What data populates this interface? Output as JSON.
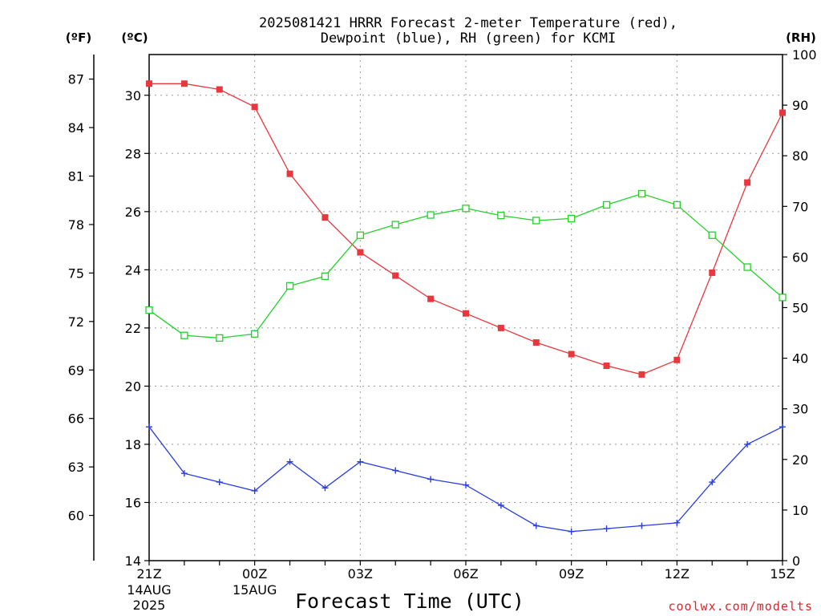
{
  "title": {
    "line1": "2025081421 HRRR Forecast 2-meter Temperature (red),",
    "line2": "Dewpoint (blue), RH (green) for KCMI"
  },
  "units": {
    "fahrenheit": "(ºF)",
    "celsius": "(ºC)",
    "rh": "(RH)"
  },
  "xlabel": "Forecast Time (UTC)",
  "credit": "coolwx.com/modelts",
  "colors": {
    "temperature": "#e8373d",
    "dewpoint": "#2a3ee0",
    "rh": "#22d22a",
    "grid": "#9a9a9a",
    "axes": "#000000"
  },
  "chart_data": {
    "type": "line",
    "x": [
      "21Z",
      "22Z",
      "23Z",
      "00Z",
      "01Z",
      "02Z",
      "03Z",
      "04Z",
      "05Z",
      "06Z",
      "07Z",
      "08Z",
      "09Z",
      "10Z",
      "11Z",
      "12Z",
      "13Z",
      "14Z",
      "15Z"
    ],
    "x_ticks": [
      {
        "label": "21Z",
        "sub": [
          "14AUG",
          "2025"
        ]
      },
      {
        "label": "00Z",
        "sub": [
          "15AUG"
        ]
      },
      {
        "label": "03Z",
        "sub": []
      },
      {
        "label": "06Z",
        "sub": []
      },
      {
        "label": "09Z",
        "sub": []
      },
      {
        "label": "12Z",
        "sub": []
      },
      {
        "label": "15Z",
        "sub": []
      }
    ],
    "y_celsius": {
      "range": [
        14,
        31.4
      ],
      "ticks": [
        14,
        16,
        18,
        20,
        22,
        24,
        26,
        28,
        30
      ]
    },
    "y_fahrenheit": {
      "ticks": [
        60,
        63,
        66,
        69,
        72,
        75,
        78,
        81,
        84,
        87
      ]
    },
    "y_rh": {
      "range": [
        0,
        100
      ],
      "ticks": [
        0,
        10,
        20,
        30,
        40,
        50,
        60,
        70,
        80,
        90,
        100
      ]
    },
    "grid": true,
    "series": [
      {
        "key": "temperature",
        "axis": "celsius",
        "marker": "filled-square",
        "values": [
          30.4,
          30.4,
          30.2,
          29.6,
          27.3,
          25.8,
          24.6,
          23.8,
          23.0,
          22.5,
          22.0,
          21.5,
          21.1,
          20.7,
          20.4,
          20.9,
          23.9,
          27.0,
          29.4
        ]
      },
      {
        "key": "dewpoint",
        "axis": "celsius",
        "marker": "plus",
        "values": [
          18.6,
          17.0,
          16.7,
          16.4,
          17.4,
          16.5,
          17.4,
          17.1,
          16.8,
          16.6,
          15.9,
          15.2,
          15.0,
          15.1,
          15.2,
          15.3,
          16.7,
          18.0,
          18.6
        ]
      },
      {
        "key": "rh",
        "axis": "rh",
        "marker": "open-square",
        "values": [
          49.5,
          44.5,
          44.0,
          44.8,
          54.3,
          56.2,
          64.3,
          66.4,
          68.3,
          69.6,
          68.2,
          67.2,
          67.6,
          70.3,
          72.5,
          70.3,
          64.3,
          58.0,
          52.0
        ]
      }
    ]
  }
}
